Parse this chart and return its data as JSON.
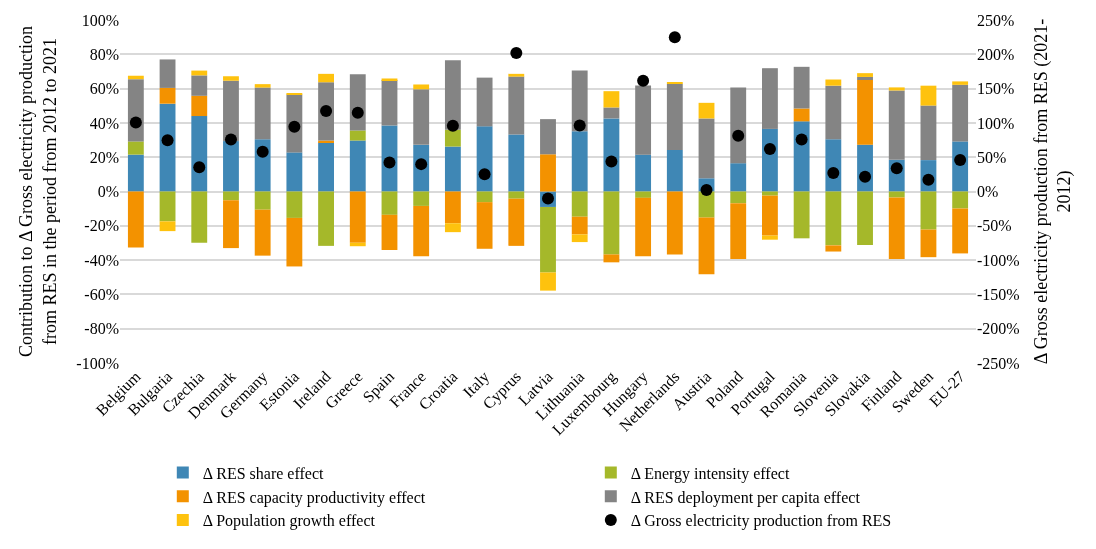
{
  "chart_data": {
    "type": "bar",
    "stacked": true,
    "ylabel": "Contribution to Δ Gross electricity production\nfrom RES in the period from 2012 to 2021",
    "y2label": "Δ Gross electricity production from RES (2021-\n2012)",
    "categories": [
      "Belgium",
      "Bulgaria",
      "Czechia",
      "Denmark",
      "Germany",
      "Estonia",
      "Ireland",
      "Greece",
      "Spain",
      "France",
      "Croatia",
      "Italy",
      "Cyprus",
      "Latvia",
      "Lithuania",
      "Luxembourg",
      "Hungary",
      "Netherlands",
      "Austria",
      "Poland",
      "Portugal",
      "Romania",
      "Slovenia",
      "Slovakia",
      "Finland",
      "Sweden",
      "EU-27"
    ],
    "series": [
      {
        "name": "Δ RES share effect",
        "color": "#3f87b5",
        "values": [
          21.5,
          51.2,
          44,
          29.4,
          30.5,
          22.8,
          28.6,
          29.7,
          38.5,
          27.2,
          26.2,
          38,
          33.2,
          -9,
          35.2,
          42.6,
          21.5,
          24.2,
          7.7,
          16.5,
          36.5,
          40.9,
          30.5,
          27.3,
          18.5,
          18.3,
          29.2
        ]
      },
      {
        "name": "Δ Energy intensity effect",
        "color": "#a5b82a",
        "values": [
          7.7,
          -17.4,
          -29.9,
          -5.1,
          -10.6,
          -15.4,
          -31.7,
          5.9,
          -13.6,
          -8.4,
          9.8,
          -6.2,
          -4.2,
          -38.2,
          -14.7,
          -36.7,
          -3.7,
          null,
          -15.2,
          -6.8,
          -2.4,
          -27.3,
          -31.4,
          -31.2,
          -3.5,
          -22.2,
          -9.9
        ]
      },
      {
        "name": "Δ RES capacity productivity effect",
        "color": "#f39200",
        "values": [
          -32.7,
          9.2,
          11.8,
          -27.9,
          -26.8,
          -28.3,
          1.1,
          -29.9,
          -20.5,
          -29.4,
          -18.5,
          -27.2,
          -27.5,
          21.7,
          -10.3,
          -4.6,
          -34.1,
          -36.7,
          -33.1,
          -32.6,
          -23.3,
          7.5,
          -3.6,
          37.7,
          -35.9,
          -16.1,
          -26.2
        ]
      },
      {
        "name": "Δ RES deployment per capita effect",
        "color": "#848484",
        "values": [
          36.3,
          16.6,
          11.9,
          35.2,
          30.1,
          33.7,
          34,
          32.8,
          26.5,
          32.4,
          40.5,
          28.4,
          33.8,
          20.5,
          35.4,
          6.4,
          40.3,
          38.6,
          34.9,
          44.2,
          35.4,
          24.3,
          31.2,
          1.8,
          40.4,
          31.8,
          33
        ]
      },
      {
        "name": "Δ Population growth effect",
        "color": "#fec20e",
        "values": [
          2,
          -5.7,
          2.8,
          2.6,
          2,
          0.4,
          4.9,
          -2,
          0.9,
          2.8,
          -5.2,
          null,
          1.6,
          -10.6,
          -4.5,
          9.5,
          null,
          0.7,
          9.1,
          null,
          -2.4,
          null,
          3.6,
          2.2,
          1.8,
          11.6,
          2
        ]
      },
      {
        "name": "Δ Gross electricity production from RES",
        "type": "scatter",
        "axis": "y2",
        "marker": "circle",
        "color": "#000000",
        "values": [
          100.5,
          74.8,
          35.3,
          75.7,
          57.8,
          94.5,
          117.4,
          114.7,
          42.2,
          39.9,
          95.9,
          25.2,
          201.8,
          -10.1,
          96.3,
          43.6,
          161.5,
          224.8,
          2.3,
          81.2,
          61.9,
          75.7,
          27.1,
          21.6,
          33.9,
          17,
          45.9
        ]
      }
    ],
    "ylim": [
      -100,
      100
    ],
    "yticks": [
      {
        "value": -100,
        "label": "-100%"
      },
      {
        "value": -80,
        "label": "-80%"
      },
      {
        "value": -60,
        "label": "-60%"
      },
      {
        "value": -40,
        "label": "-40%"
      },
      {
        "value": -20,
        "label": "-20%"
      },
      {
        "value": 0,
        "label": "0%"
      },
      {
        "value": 20,
        "label": "20%"
      },
      {
        "value": 40,
        "label": "40%"
      },
      {
        "value": 60,
        "label": "60%"
      },
      {
        "value": 80,
        "label": "80%"
      },
      {
        "value": 100,
        "label": "100%"
      }
    ],
    "y2lim": [
      -250,
      250
    ],
    "y2ticks": [
      {
        "value": -250,
        "label": "-250%"
      },
      {
        "value": -200,
        "label": "-200%"
      },
      {
        "value": -150,
        "label": "-150%"
      },
      {
        "value": -100,
        "label": "-100%"
      },
      {
        "value": -50,
        "label": "-50%"
      },
      {
        "value": 0,
        "label": "0%"
      },
      {
        "value": 50,
        "label": "50%"
      },
      {
        "value": 100,
        "label": "100%"
      },
      {
        "value": 150,
        "label": "150%"
      },
      {
        "value": 200,
        "label": "200%"
      },
      {
        "value": 250,
        "label": "250%"
      }
    ],
    "grid": "y",
    "legend": "bottom"
  }
}
